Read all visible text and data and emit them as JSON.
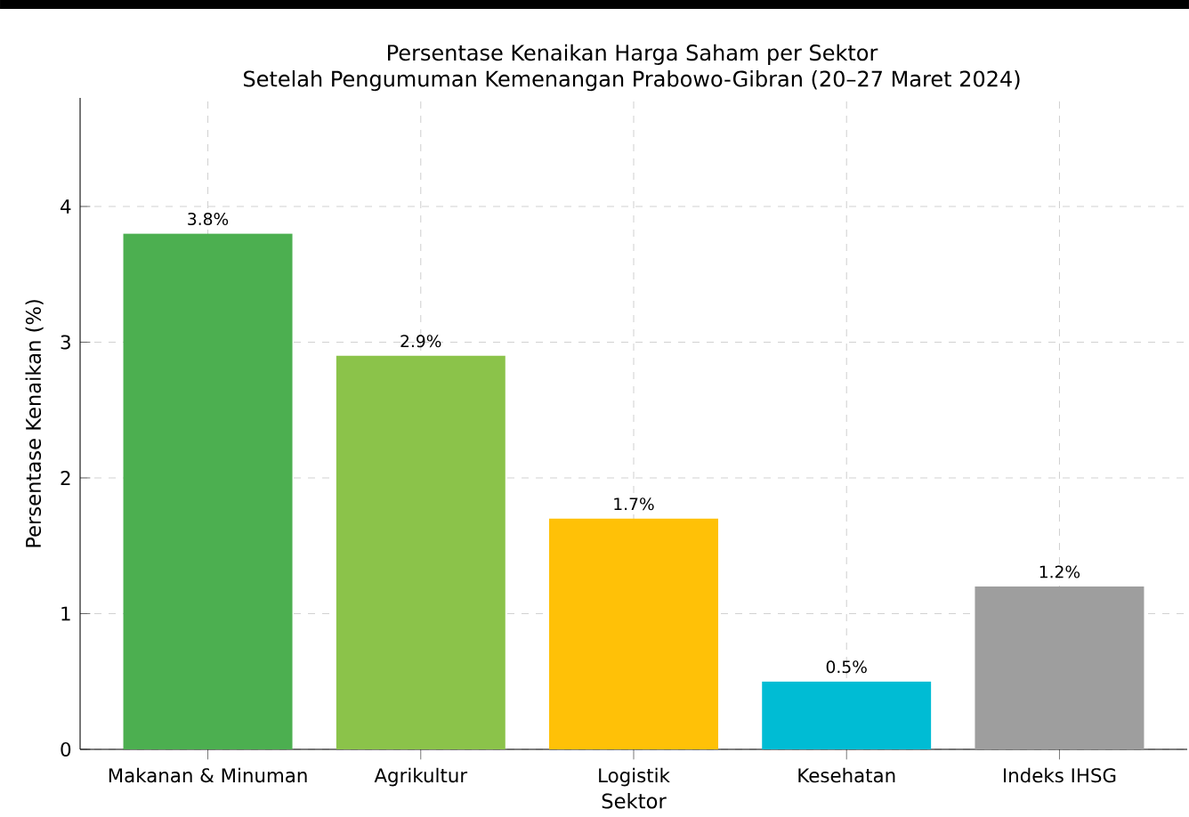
{
  "chart_data": {
    "type": "bar",
    "title": "Persentase Kenaikan Harga Saham per Sektor",
    "subtitle": "Setelah Pengumuman Kemenangan Prabowo-Gibran (20–27 Maret 2024)",
    "xlabel": "Sektor",
    "ylabel": "Persentase Kenaikan (%)",
    "categories": [
      "Makanan & Minuman",
      "Agrikultur",
      "Logistik",
      "Kesehatan",
      "Indeks IHSG"
    ],
    "values": [
      3.8,
      2.9,
      1.7,
      0.5,
      1.2
    ],
    "colors": [
      "#4caf50",
      "#8bc34a",
      "#ffc107",
      "#00bcd4",
      "#9e9e9e"
    ],
    "value_labels": [
      "3.8%",
      "2.9%",
      "1.7%",
      "0.5%",
      "1.2%"
    ],
    "ylim": [
      0,
      4.8
    ],
    "yticks": [
      0,
      1,
      2,
      3,
      4
    ],
    "grid": true
  }
}
